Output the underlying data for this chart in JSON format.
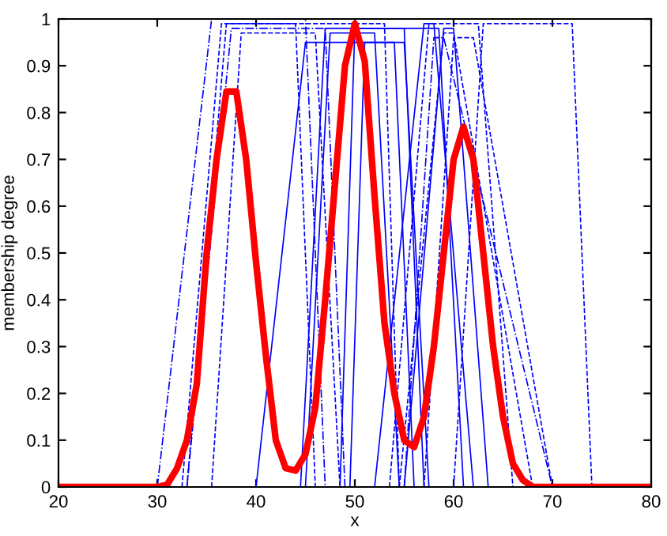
{
  "chart_data": {
    "type": "line",
    "xlabel": "x",
    "ylabel": "membership degree",
    "xlim": [
      20,
      80
    ],
    "ylim": [
      0,
      1
    ],
    "xticks": [
      20,
      30,
      40,
      50,
      60,
      70,
      80
    ],
    "yticks": [
      0,
      0.1,
      0.2,
      0.3,
      0.4,
      0.5,
      0.6,
      0.7,
      0.8,
      0.9,
      1
    ],
    "grid": false,
    "legend": false,
    "marker": "none",
    "series": [
      {
        "color": "#0000ff",
        "line_style": "dashdot",
        "x": [
          30,
          35.5,
          45,
          47
        ],
        "values": [
          0,
          1.0,
          1.0,
          0
        ]
      },
      {
        "color": "#0000ff",
        "line_style": "dashed",
        "x": [
          32.5,
          36.5,
          44,
          46
        ],
        "values": [
          0,
          0.99,
          0.99,
          0
        ]
      },
      {
        "color": "#0000ff",
        "line_style": "dashed",
        "x": [
          33,
          37,
          53,
          54.5
        ],
        "values": [
          0,
          0.99,
          0.99,
          0
        ]
      },
      {
        "color": "#0000ff",
        "line_style": "dashdot",
        "x": [
          33,
          37.5,
          47,
          49
        ],
        "values": [
          0,
          0.98,
          0.98,
          0
        ]
      },
      {
        "color": "#0000ff",
        "line_style": "dashed",
        "x": [
          35.5,
          38.5,
          46,
          48.5
        ],
        "values": [
          0,
          0.97,
          0.97,
          0
        ]
      },
      {
        "color": "#0000ff",
        "line_style": "solid",
        "x": [
          40,
          45,
          54,
          56
        ],
        "values": [
          0,
          0.95,
          0.95,
          0
        ]
      },
      {
        "color": "#0000ff",
        "line_style": "solid",
        "x": [
          44.5,
          47,
          55,
          57
        ],
        "values": [
          0,
          0.98,
          0.98,
          0
        ]
      },
      {
        "color": "#0000ff",
        "line_style": "solid",
        "x": [
          45,
          47.5,
          52,
          54.5
        ],
        "values": [
          0,
          0.97,
          0.97,
          0
        ]
      },
      {
        "color": "#0000ff",
        "line_style": "solid",
        "x": [
          48.5,
          50,
          58.5,
          61
        ],
        "values": [
          0,
          0.98,
          0.98,
          0
        ]
      },
      {
        "color": "#0000ff",
        "line_style": "solid",
        "x": [
          49.5,
          51,
          55,
          57.5
        ],
        "values": [
          0,
          0.95,
          0.95,
          0
        ]
      },
      {
        "color": "#0000ff",
        "line_style": "solid",
        "x": [
          52,
          57,
          58,
          62
        ],
        "values": [
          0,
          0.99,
          0.99,
          0
        ]
      },
      {
        "color": "#0000ff",
        "line_style": "dashed",
        "x": [
          53.5,
          57.5,
          62.5,
          66
        ],
        "values": [
          0,
          0.99,
          0.99,
          0
        ]
      },
      {
        "color": "#0000ff",
        "line_style": "dashed",
        "x": [
          54.5,
          59,
          60,
          68
        ],
        "values": [
          0,
          0.97,
          0.97,
          0
        ]
      },
      {
        "color": "#0000ff",
        "line_style": "dashdot",
        "x": [
          55,
          58,
          59,
          70
        ],
        "values": [
          0,
          0.96,
          0.96,
          0
        ]
      },
      {
        "color": "#0000ff",
        "line_style": "solid",
        "x": [
          55,
          59,
          60,
          63.5
        ],
        "values": [
          0,
          0.98,
          0.98,
          0
        ]
      },
      {
        "color": "#0000ff",
        "line_style": "dashed",
        "x": [
          57,
          60,
          62,
          70
        ],
        "values": [
          0,
          0.96,
          0.96,
          0
        ]
      },
      {
        "color": "#0000ff",
        "line_style": "dashed",
        "x": [
          60,
          63,
          72,
          74
        ],
        "values": [
          0,
          0.99,
          0.99,
          0
        ]
      },
      {
        "color": "#ff0000",
        "line_style": "solid",
        "x": [
          20,
          30,
          31,
          32,
          33,
          34,
          35,
          36,
          37,
          38,
          39,
          40,
          41,
          42,
          43,
          44,
          45,
          46,
          47,
          48,
          49,
          50,
          51,
          52,
          53,
          54,
          55,
          56,
          57,
          58,
          59,
          60,
          61,
          62,
          63,
          64,
          65,
          66,
          67,
          68,
          80
        ],
        "values": [
          0,
          0,
          0.005,
          0.04,
          0.1,
          0.22,
          0.5,
          0.7,
          0.845,
          0.845,
          0.7,
          0.48,
          0.28,
          0.1,
          0.04,
          0.035,
          0.07,
          0.17,
          0.4,
          0.65,
          0.9,
          0.99,
          0.91,
          0.62,
          0.35,
          0.2,
          0.1,
          0.085,
          0.15,
          0.3,
          0.5,
          0.7,
          0.77,
          0.7,
          0.5,
          0.3,
          0.15,
          0.05,
          0.015,
          0,
          0
        ]
      }
    ]
  }
}
